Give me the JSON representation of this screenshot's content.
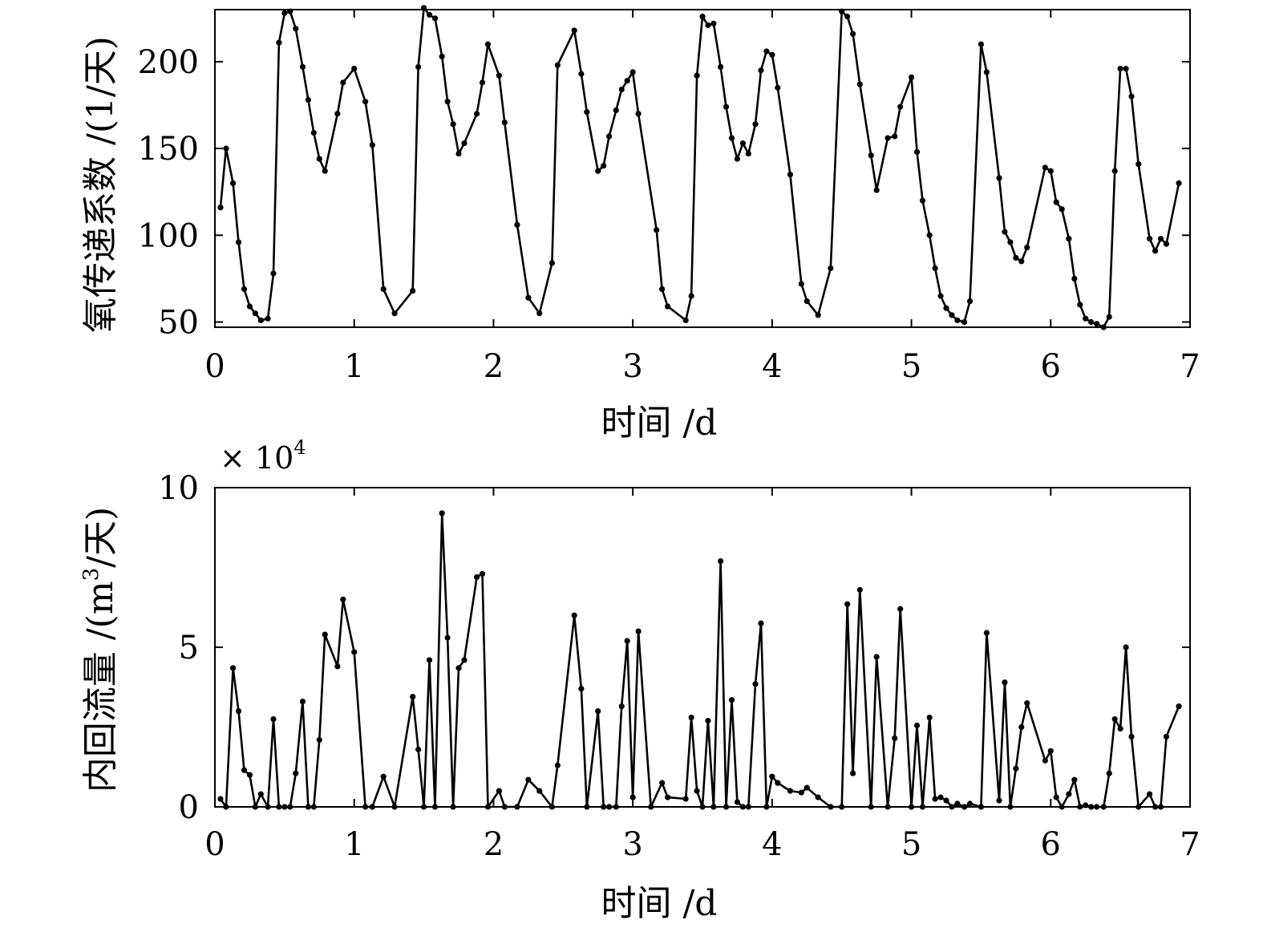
{
  "chart_data": [
    {
      "type": "line",
      "title": "",
      "xlabel": "时间 /d",
      "ylabel": "氧传递系数 /(1/天)",
      "xlim": [
        0,
        7
      ],
      "ylim": [
        47,
        230
      ],
      "xticks": [
        0,
        1,
        2,
        3,
        4,
        5,
        6,
        7
      ],
      "yticks": [
        50,
        100,
        150,
        200
      ],
      "x_tick_labels": [
        "0",
        "1",
        "2",
        "3",
        "4",
        "5",
        "6",
        "7"
      ],
      "y_tick_labels": [
        "50",
        "100",
        "150",
        "200"
      ],
      "grid": false,
      "series": [
        {
          "marker": "dot",
          "color": "#000000",
          "x": [
            0.04,
            0.08,
            0.13,
            0.17,
            0.21,
            0.25,
            0.29,
            0.33,
            0.38,
            0.42,
            0.46,
            0.5,
            0.54,
            0.58,
            0.63,
            0.67,
            0.71,
            0.75,
            0.79,
            0.88,
            0.92,
            1.0,
            1.08,
            1.13,
            1.21,
            1.29,
            1.42,
            1.46,
            1.5,
            1.54,
            1.58,
            1.63,
            1.67,
            1.71,
            1.75,
            1.79,
            1.88,
            1.92,
            1.96,
            2.04,
            2.08,
            2.17,
            2.25,
            2.33,
            2.42,
            2.46,
            2.58,
            2.63,
            2.67,
            2.75,
            2.79,
            2.83,
            2.88,
            2.92,
            2.96,
            3.0,
            3.04,
            3.17,
            3.21,
            3.25,
            3.38,
            3.42,
            3.46,
            3.5,
            3.54,
            3.58,
            3.63,
            3.67,
            3.71,
            3.75,
            3.79,
            3.83,
            3.88,
            3.92,
            3.96,
            4.0,
            4.04,
            4.13,
            4.21,
            4.25,
            4.33,
            4.42,
            4.5,
            4.54,
            4.58,
            4.63,
            4.71,
            4.75,
            4.83,
            4.88,
            4.92,
            5.0,
            5.04,
            5.08,
            5.13,
            5.17,
            5.21,
            5.25,
            5.29,
            5.33,
            5.38,
            5.42,
            5.5,
            5.54,
            5.63,
            5.67,
            5.71,
            5.75,
            5.79,
            5.83,
            5.96,
            6.0,
            6.04,
            6.08,
            6.13,
            6.17,
            6.21,
            6.25,
            6.29,
            6.33,
            6.38,
            6.42,
            6.46,
            6.5,
            6.54,
            6.58,
            6.63,
            6.71,
            6.75,
            6.79,
            6.83,
            6.92
          ],
          "y": [
            116,
            150,
            130,
            96,
            69,
            59,
            55,
            51,
            52,
            78,
            211,
            228,
            229,
            219,
            197,
            178,
            159,
            144,
            137,
            170,
            188,
            196,
            177,
            152,
            69,
            55,
            68,
            197,
            231,
            227,
            225,
            203,
            177,
            164,
            147,
            153,
            170,
            188,
            210,
            192,
            165,
            106,
            64,
            55,
            84,
            198,
            218,
            193,
            171,
            137,
            140,
            157,
            172,
            184,
            189,
            194,
            170,
            103,
            69,
            59,
            51,
            65,
            192,
            226,
            221,
            222,
            197,
            174,
            156,
            144,
            153,
            147,
            164,
            195,
            206,
            204,
            185,
            135,
            72,
            62,
            54,
            81,
            229,
            226,
            216,
            187,
            146,
            126,
            156,
            157,
            174,
            191,
            148,
            120,
            100,
            81,
            65,
            58,
            54,
            51,
            50,
            62,
            210,
            194,
            133,
            102,
            96,
            87,
            85,
            93,
            139,
            137,
            119,
            115,
            98,
            75,
            60,
            52,
            50,
            49,
            47,
            53,
            137,
            196,
            196,
            180,
            141,
            98,
            91,
            98,
            95,
            130
          ]
        }
      ]
    },
    {
      "type": "line",
      "title": "",
      "xlabel": "时间 /d",
      "ylabel_parts": [
        "内回流量 /(m",
        "3",
        "/天)"
      ],
      "multiplier_parts": [
        "× 10",
        "4"
      ],
      "xlim": [
        0,
        7
      ],
      "ylim": [
        0,
        10
      ],
      "xticks": [
        0,
        1,
        2,
        3,
        4,
        5,
        6,
        7
      ],
      "yticks": [
        0,
        5,
        10
      ],
      "x_tick_labels": [
        "0",
        "1",
        "2",
        "3",
        "4",
        "5",
        "6",
        "7"
      ],
      "y_tick_labels": [
        "0",
        "5",
        "10"
      ],
      "grid": false,
      "series": [
        {
          "marker": "dot",
          "color": "#000000",
          "x": [
            0.04,
            0.08,
            0.13,
            0.17,
            0.21,
            0.25,
            0.29,
            0.33,
            0.38,
            0.42,
            0.46,
            0.5,
            0.54,
            0.58,
            0.63,
            0.67,
            0.71,
            0.75,
            0.79,
            0.88,
            0.92,
            1.0,
            1.08,
            1.13,
            1.21,
            1.29,
            1.42,
            1.46,
            1.5,
            1.54,
            1.58,
            1.63,
            1.67,
            1.71,
            1.75,
            1.79,
            1.88,
            1.92,
            1.96,
            2.04,
            2.08,
            2.17,
            2.25,
            2.33,
            2.42,
            2.46,
            2.58,
            2.63,
            2.67,
            2.75,
            2.79,
            2.83,
            2.88,
            2.92,
            2.96,
            3.0,
            3.04,
            3.13,
            3.21,
            3.25,
            3.38,
            3.42,
            3.46,
            3.5,
            3.54,
            3.58,
            3.63,
            3.67,
            3.71,
            3.75,
            3.79,
            3.83,
            3.88,
            3.92,
            3.96,
            4.0,
            4.04,
            4.13,
            4.21,
            4.25,
            4.33,
            4.42,
            4.5,
            4.54,
            4.58,
            4.63,
            4.71,
            4.75,
            4.83,
            4.88,
            4.92,
            5.0,
            5.04,
            5.08,
            5.13,
            5.17,
            5.21,
            5.25,
            5.29,
            5.33,
            5.38,
            5.42,
            5.5,
            5.54,
            5.63,
            5.67,
            5.71,
            5.75,
            5.79,
            5.83,
            5.96,
            6.0,
            6.04,
            6.08,
            6.13,
            6.17,
            6.21,
            6.25,
            6.29,
            6.33,
            6.38,
            6.42,
            6.46,
            6.5,
            6.54,
            6.58,
            6.63,
            6.71,
            6.75,
            6.79,
            6.83,
            6.92
          ],
          "y": [
            0.25,
            0.0,
            4.35,
            3.0,
            1.15,
            1.0,
            0.0,
            0.4,
            0.0,
            2.75,
            0.0,
            0.0,
            0.0,
            1.05,
            3.3,
            0.0,
            0.0,
            2.1,
            5.4,
            4.4,
            6.5,
            4.85,
            0.0,
            0.0,
            0.95,
            0.0,
            3.45,
            1.8,
            0.0,
            4.6,
            0.0,
            9.2,
            5.3,
            0.0,
            4.35,
            4.6,
            7.2,
            7.3,
            0.0,
            0.5,
            0.0,
            0.0,
            0.85,
            0.5,
            0.0,
            1.3,
            6.0,
            3.7,
            0.0,
            3.0,
            0.0,
            0.0,
            0.0,
            3.15,
            5.2,
            0.3,
            5.5,
            0.0,
            0.75,
            0.3,
            0.25,
            2.8,
            0.5,
            0.0,
            2.7,
            0.0,
            7.7,
            0.0,
            3.35,
            0.15,
            0.0,
            0.0,
            3.85,
            5.75,
            0.0,
            0.95,
            0.75,
            0.5,
            0.45,
            0.6,
            0.3,
            0.0,
            0.0,
            6.35,
            1.05,
            6.8,
            0.0,
            4.7,
            0.0,
            2.15,
            6.2,
            0.0,
            2.55,
            0.0,
            2.8,
            0.25,
            0.3,
            0.2,
            0.0,
            0.1,
            0.0,
            0.1,
            0.0,
            5.45,
            0.2,
            3.9,
            0.0,
            1.2,
            2.5,
            3.25,
            1.45,
            1.75,
            0.3,
            0.0,
            0.4,
            0.85,
            0.0,
            0.05,
            0.0,
            0.0,
            0.0,
            1.05,
            2.75,
            2.45,
            5.0,
            2.2,
            0.0,
            0.4,
            0.0,
            0.0,
            2.2,
            3.15
          ]
        }
      ]
    }
  ]
}
